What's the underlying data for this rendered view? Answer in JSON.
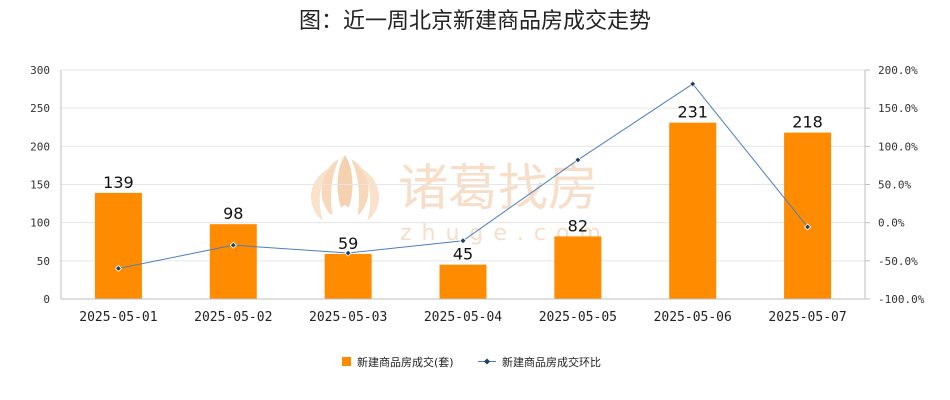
{
  "chart_data": {
    "type": "bar",
    "title": "图：近一周北京新建商品房成交走势",
    "categories": [
      "2025-05-01",
      "2025-05-02",
      "2025-05-03",
      "2025-05-04",
      "2025-05-05",
      "2025-05-06",
      "2025-05-07"
    ],
    "series": [
      {
        "name": "新建商品房成交(套)",
        "type": "bar",
        "axis": "left",
        "color": "#ff8c00",
        "values": [
          139,
          98,
          59,
          45,
          82,
          231,
          218
        ]
      },
      {
        "name": "新建商品房成交环比",
        "type": "line",
        "axis": "right",
        "color": "#4a7fbf",
        "values": [
          -60.0,
          -29.5,
          -39.8,
          -23.7,
          82.2,
          181.7,
          -5.6
        ]
      }
    ],
    "y_left": {
      "min": 0,
      "max": 300,
      "ticks": [
        0,
        50,
        100,
        150,
        200,
        250,
        300
      ],
      "tick_labels": [
        "0",
        "50",
        "100",
        "150",
        "200",
        "250",
        "300"
      ]
    },
    "y_right": {
      "min": -100,
      "max": 200,
      "ticks": [
        -100,
        -50,
        0,
        50,
        100,
        150,
        200
      ],
      "tick_labels": [
        "-100.0%",
        "-50.0%",
        "0.0%",
        "50.0%",
        "100.0%",
        "150.0%",
        "200.0%"
      ]
    },
    "grid": true,
    "legend_position": "bottom"
  },
  "watermark": {
    "brand": "诸葛找房",
    "domain": "zhuge.com"
  }
}
